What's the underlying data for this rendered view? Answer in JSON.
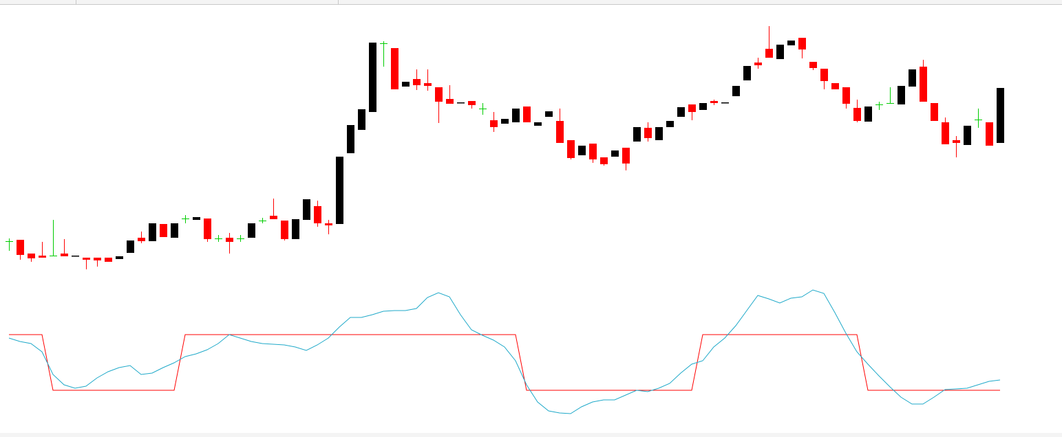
{
  "chart_data": [
    {
      "type": "candlestick",
      "up_color": "#000000",
      "down_color": "#ff0000",
      "doji_color": "#00cc00",
      "ylim": [
        0,
        636
      ],
      "open": [
        285,
        287,
        267,
        264,
        264,
        267,
        263,
        261,
        261,
        261,
        259,
        268,
        290,
        285,
        310,
        290,
        318,
        316,
        318,
        289,
        290,
        289,
        290,
        315,
        322,
        315,
        288,
        316,
        336,
        311,
        310,
        413,
        447,
        473,
        573,
        566,
        510,
        521,
        515,
        509,
        492,
        486,
        489,
        478,
        461,
        456,
        458,
        481,
        453,
        466,
        460,
        432,
        410,
        427,
        407,
        408,
        421,
        430,
        450,
        432,
        451,
        466,
        484,
        476,
        489,
        486,
        496,
        519,
        545,
        565,
        550,
        570,
        581,
        546,
        536,
        515,
        509,
        479,
        459,
        484,
        486,
        484,
        510,
        539,
        486,
        458,
        432,
        425,
        462,
        458,
        428
      ],
      "high": [
        289,
        287,
        267,
        284,
        316,
        288,
        264,
        261,
        261,
        261,
        263,
        286,
        299,
        311,
        310,
        311,
        323,
        320,
        318,
        294,
        297,
        294,
        311,
        319,
        347,
        315,
        317,
        346,
        344,
        316,
        408,
        454,
        477,
        574,
        576,
        566,
        517,
        535,
        535,
        509,
        512,
        487,
        489,
        486,
        473,
        463,
        478,
        481,
        458,
        474,
        478,
        432,
        424,
        427,
        407,
        417,
        421,
        451,
        458,
        451,
        460,
        480,
        484,
        486,
        491,
        487,
        511,
        540,
        552,
        598,
        571,
        577,
        581,
        546,
        536,
        515,
        509,
        491,
        481,
        488,
        509,
        511,
        535,
        549,
        486,
        465,
        438,
        453,
        478,
        458,
        508
      ],
      "low": [
        271,
        258,
        255,
        261,
        264,
        263,
        263,
        244,
        248,
        255,
        259,
        268,
        282,
        285,
        291,
        290,
        311,
        316,
        284,
        284,
        267,
        284,
        290,
        311,
        317,
        286,
        288,
        316,
        306,
        295,
        310,
        413,
        447,
        473,
        539,
        506,
        510,
        505,
        504,
        457,
        485,
        486,
        478,
        469,
        444,
        456,
        458,
        458,
        453,
        466,
        428,
        404,
        410,
        399,
        395,
        408,
        388,
        430,
        430,
        432,
        451,
        466,
        461,
        476,
        483,
        486,
        496,
        519,
        536,
        552,
        550,
        570,
        551,
        534,
        506,
        506,
        478,
        458,
        459,
        476,
        486,
        484,
        510,
        488,
        460,
        426,
        407,
        425,
        450,
        424,
        428
      ],
      "close": [
        285,
        265,
        260,
        261,
        264,
        263,
        264,
        258,
        257,
        255,
        263,
        286,
        285,
        311,
        291,
        311,
        318,
        320,
        288,
        289,
        284,
        289,
        311,
        315,
        317,
        288,
        317,
        346,
        311,
        308,
        408,
        454,
        477,
        574,
        573,
        506,
        517,
        512,
        511,
        488,
        485,
        487,
        483,
        478,
        451,
        463,
        478,
        458,
        458,
        474,
        428,
        406,
        424,
        404,
        397,
        417,
        398,
        451,
        435,
        451,
        460,
        480,
        473,
        486,
        486,
        487,
        511,
        540,
        541,
        552,
        571,
        577,
        564,
        537,
        518,
        506,
        485,
        460,
        481,
        484,
        486,
        511,
        535,
        488,
        460,
        426,
        428,
        453,
        462,
        424,
        508
      ]
    },
    {
      "type": "line",
      "ylim": [
        0,
        636
      ],
      "series": [
        {
          "color": "#ff0000",
          "values": [
            149,
            149,
            149,
            149,
            68,
            68,
            68,
            68,
            68,
            68,
            68,
            68,
            68,
            68,
            68,
            68,
            149,
            149,
            149,
            149,
            149,
            149,
            149,
            149,
            149,
            149,
            149,
            149,
            149,
            149,
            149,
            149,
            149,
            149,
            149,
            149,
            149,
            149,
            149,
            149,
            149,
            149,
            149,
            149,
            149,
            149,
            149,
            68,
            68,
            68,
            68,
            68,
            68,
            68,
            68,
            68,
            68,
            68,
            68,
            68,
            68,
            68,
            68,
            149,
            149,
            149,
            149,
            149,
            149,
            149,
            149,
            149,
            149,
            149,
            149,
            149,
            149,
            149,
            68,
            68,
            68,
            68,
            68,
            68,
            68,
            68,
            68,
            68,
            68,
            68,
            68
          ]
        },
        {
          "color": "#1fa9c9",
          "values": [
            144,
            139,
            136,
            124,
            91,
            76,
            71,
            74,
            86,
            95,
            101,
            104,
            91,
            93,
            101,
            108,
            117,
            121,
            127,
            136,
            149,
            144,
            139,
            136,
            135,
            134,
            131,
            126,
            134,
            144,
            160,
            174,
            174,
            178,
            183,
            184,
            184,
            187,
            203,
            210,
            204,
            178,
            156,
            148,
            141,
            131,
            111,
            76,
            51,
            38,
            35,
            34,
            44,
            51,
            54,
            54,
            61,
            68,
            66,
            71,
            78,
            93,
            106,
            111,
            131,
            144,
            162,
            184,
            206,
            201,
            195,
            202,
            204,
            214,
            209,
            181,
            151,
            124,
            106,
            89,
            73,
            58,
            48,
            48,
            58,
            69,
            70,
            71,
            76,
            81,
            83
          ]
        }
      ]
    }
  ]
}
